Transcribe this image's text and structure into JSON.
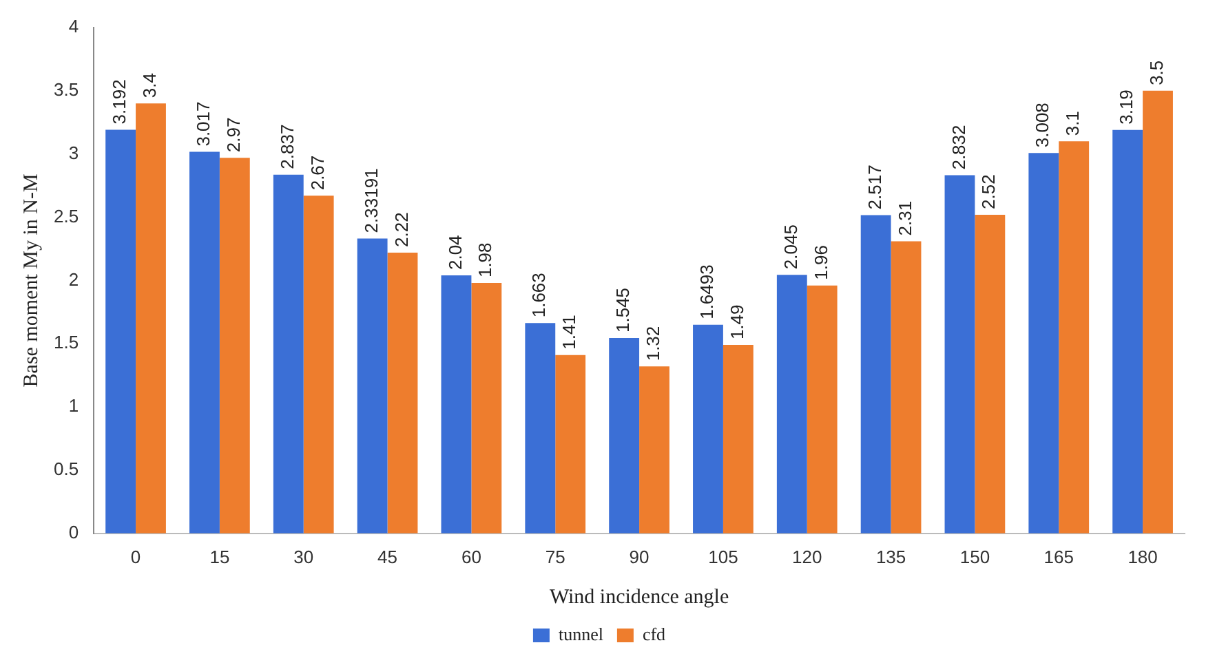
{
  "chart_data": {
    "type": "bar",
    "xlabel": "Wind incidence angle",
    "ylabel": "Base moment My in N-M",
    "categories": [
      "0",
      "15",
      "30",
      "45",
      "60",
      "75",
      "90",
      "105",
      "120",
      "135",
      "150",
      "165",
      "180"
    ],
    "series": [
      {
        "name": "tunnel",
        "color": "#3b6fd6",
        "values": [
          3.192,
          3.017,
          2.837,
          2.33191,
          2.04,
          1.663,
          1.545,
          1.6493,
          2.045,
          2.517,
          2.832,
          3.008,
          3.19
        ]
      },
      {
        "name": "cfd",
        "color": "#ee7d2d",
        "values": [
          3.4,
          2.97,
          2.67,
          2.22,
          1.98,
          1.41,
          1.32,
          1.49,
          1.96,
          2.31,
          2.52,
          3.1,
          3.5
        ]
      }
    ],
    "ylim": [
      0,
      4
    ],
    "yticks": [
      0,
      0.5,
      1,
      1.5,
      2,
      2.5,
      3,
      3.5,
      4
    ],
    "grid": false,
    "legend": "bottom",
    "data_labels": true
  }
}
